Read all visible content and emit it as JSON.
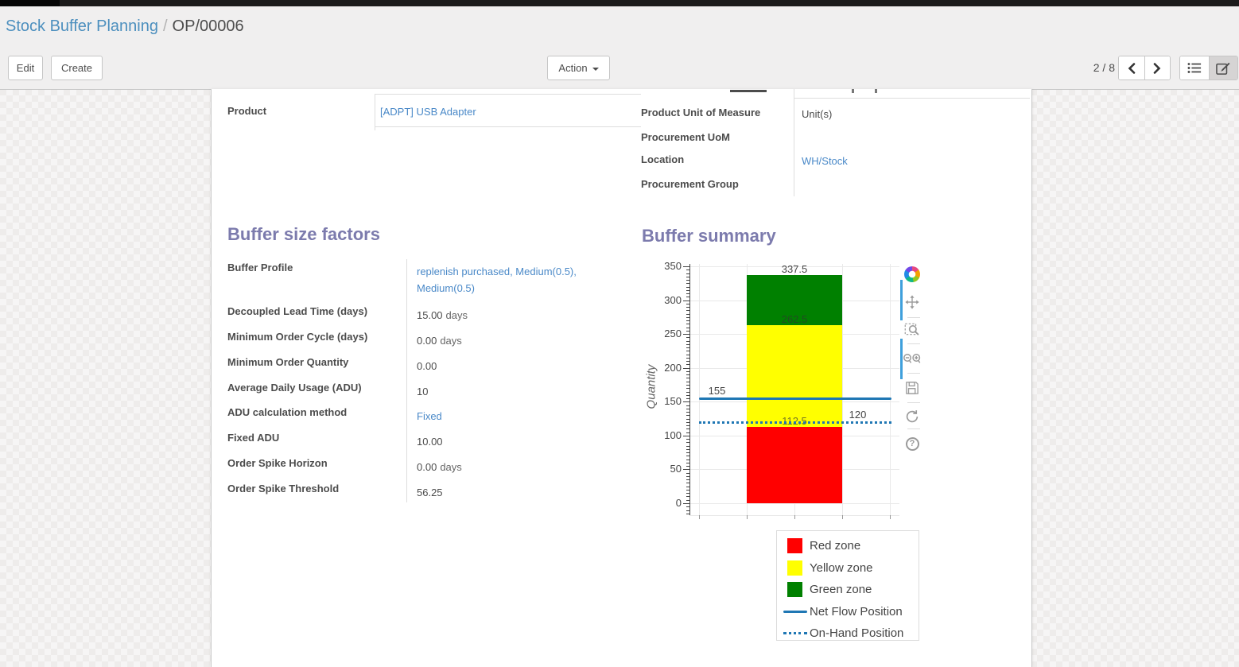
{
  "breadcrumb": {
    "parent": "Stock Buffer Planning",
    "separator": "/",
    "current": "OP/00006"
  },
  "toolbar": {
    "edit_label": "Edit",
    "create_label": "Create",
    "action_label": "Action",
    "pager_text": "2 / 8",
    "view_switcher": [
      "list-view",
      "form-view"
    ],
    "active_view": "form-view"
  },
  "sheet": {
    "fields_left": [
      {
        "label": "Product",
        "value": "[ADPT] USB Adapter",
        "link": true
      }
    ],
    "fields_right": [
      {
        "label": "Product Unit of Measure",
        "value": "Unit(s)",
        "link": false
      },
      {
        "label": "Procurement UoM",
        "value": "",
        "link": false
      },
      {
        "label": "Location",
        "value": "WH/Stock",
        "link": true
      },
      {
        "label": "Procurement Group",
        "value": "",
        "link": false
      }
    ],
    "buffer_factors": {
      "title": "Buffer size factors",
      "rows": [
        {
          "label": "Buffer Profile",
          "value": "replenish purchased, Medium(0.5), Medium(0.5)",
          "link": true
        },
        {
          "label": "Decoupled Lead Time (days)",
          "value": "15.00",
          "unit": "days"
        },
        {
          "label": "Minimum Order Cycle (days)",
          "value": "0.00",
          "unit": "days"
        },
        {
          "label": "Minimum Order Quantity",
          "value": "0.00"
        },
        {
          "label": "Average Daily Usage (ADU)",
          "value": "10"
        },
        {
          "label": "ADU calculation method",
          "value": "Fixed",
          "link": true
        },
        {
          "label": "Fixed ADU",
          "value": "10.00"
        },
        {
          "label": "Order Spike Horizon",
          "value": "0.00",
          "unit": "days"
        },
        {
          "label": "Order Spike Threshold",
          "value": "56.25"
        }
      ]
    },
    "buffer_summary_title": "Buffer summary"
  },
  "chart_data": {
    "type": "bar",
    "title": "Buffer summary",
    "ylabel": "Quantity",
    "ylim": [
      -17,
      354
    ],
    "yticks": [
      0,
      50,
      100,
      150,
      200,
      250,
      300,
      350
    ],
    "minor_tick_step": 5,
    "grid": true,
    "zones": [
      {
        "name": "Red zone",
        "from": 0,
        "to": 112.5,
        "color": "#ff0000",
        "label": "112.5"
      },
      {
        "name": "Yellow zone",
        "from": 112.5,
        "to": 262.5,
        "color": "#ffff00",
        "label": "262.5"
      },
      {
        "name": "Green zone",
        "from": 262.5,
        "to": 337.5,
        "color": "#008000",
        "label": "337.5"
      }
    ],
    "lines": [
      {
        "name": "Net Flow Position",
        "value": 155,
        "style": "solid",
        "color": "#1f77b4",
        "label": "155",
        "label_side": "left"
      },
      {
        "name": "On-Hand Position",
        "value": 120,
        "style": "dotted",
        "color": "#1f77b4",
        "label": "120",
        "label_side": "right"
      }
    ],
    "legend": [
      {
        "label": "Red zone",
        "marker": "square",
        "color": "#ff0000"
      },
      {
        "label": "Yellow zone",
        "marker": "square",
        "color": "#ffff00"
      },
      {
        "label": "Green zone",
        "marker": "square",
        "color": "#008000"
      },
      {
        "label": "Net Flow Position",
        "marker": "line",
        "color": "#1f77b4"
      },
      {
        "label": "On-Hand Position",
        "marker": "dotted-line",
        "color": "#1f77b4"
      }
    ],
    "legend_position": "below-right",
    "modebar": [
      "plotly-logo",
      "pan",
      "box-zoom",
      "zoom-in-out",
      "save",
      "reset",
      "help"
    ]
  },
  "colors": {
    "heading": "#7c7bad",
    "breadcrumb_link": "#4c8fbe",
    "field_link": "#4a89c8",
    "red_zone": "#ff0000",
    "yellow_zone": "#ffff00",
    "green_zone": "#008000",
    "flow_line": "#1f77b4",
    "header_bg": "#f0efef",
    "topbar_bg": "#1b1b1b"
  }
}
